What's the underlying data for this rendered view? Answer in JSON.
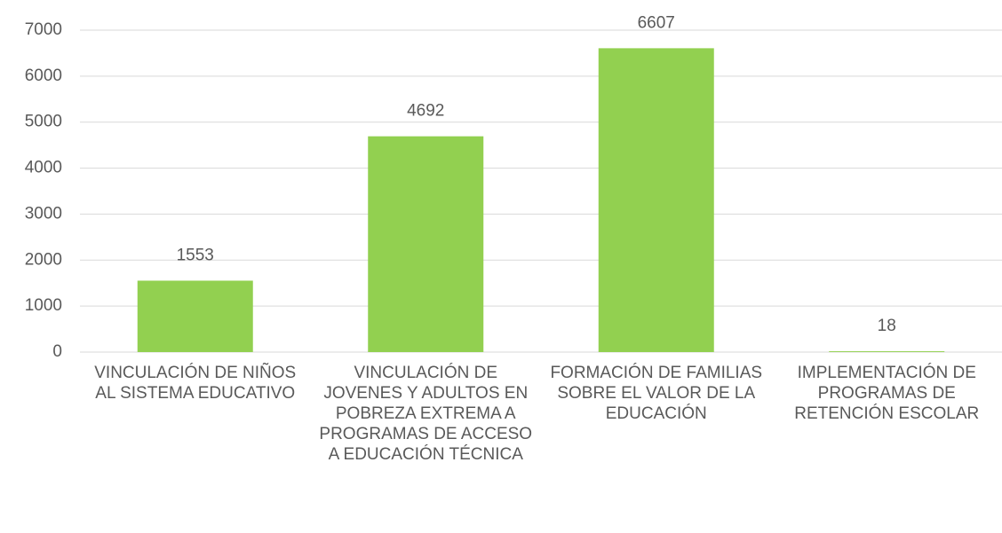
{
  "chart_data": {
    "type": "bar",
    "categories": [
      "VINCULACIÓN DE NIÑOS AL SISTEMA EDUCATIVO",
      "VINCULACIÓN DE JOVENES Y ADULTOS EN POBREZA EXTREMA A PROGRAMAS DE ACCESO A EDUCACIÓN TÉCNICA",
      "FORMACIÓN DE FAMILIAS SOBRE EL VALOR DE LA EDUCACIÓN",
      "IMPLEMENTACIÓN DE PROGRAMAS DE RETENCIÓN ESCOLAR"
    ],
    "values": [
      1553,
      4692,
      6607,
      18
    ],
    "color": "#92d050",
    "ylim": [
      0,
      7000
    ],
    "yticks": [
      0,
      1000,
      2000,
      3000,
      4000,
      5000,
      6000,
      7000
    ],
    "grid": true
  }
}
